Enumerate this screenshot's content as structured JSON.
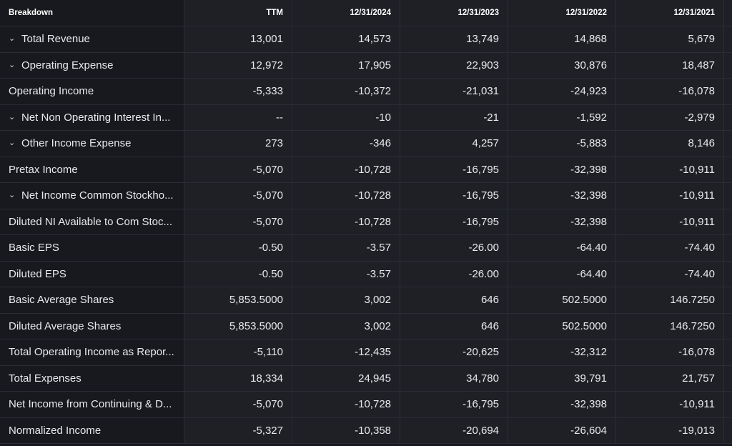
{
  "header": {
    "breakdown": "Breakdown",
    "columns": [
      "TTM",
      "12/31/2024",
      "12/31/2023",
      "12/31/2022",
      "12/31/2021"
    ]
  },
  "rows": [
    {
      "label": "Total Revenue",
      "expandable": true,
      "values": [
        "13,001",
        "14,573",
        "13,749",
        "14,868",
        "5,679"
      ]
    },
    {
      "label": "Operating Expense",
      "expandable": true,
      "values": [
        "12,972",
        "17,905",
        "22,903",
        "30,876",
        "18,487"
      ]
    },
    {
      "label": "Operating Income",
      "expandable": false,
      "values": [
        "-5,333",
        "-10,372",
        "-21,031",
        "-24,923",
        "-16,078"
      ]
    },
    {
      "label": "Net Non Operating Interest In...",
      "expandable": true,
      "values": [
        "--",
        "-10",
        "-21",
        "-1,592",
        "-2,979"
      ]
    },
    {
      "label": "Other Income Expense",
      "expandable": true,
      "values": [
        "273",
        "-346",
        "4,257",
        "-5,883",
        "8,146"
      ]
    },
    {
      "label": "Pretax Income",
      "expandable": false,
      "values": [
        "-5,070",
        "-10,728",
        "-16,795",
        "-32,398",
        "-10,911"
      ]
    },
    {
      "label": "Net Income Common Stockho...",
      "expandable": true,
      "values": [
        "-5,070",
        "-10,728",
        "-16,795",
        "-32,398",
        "-10,911"
      ]
    },
    {
      "label": "Diluted NI Available to Com Stoc...",
      "expandable": false,
      "values": [
        "-5,070",
        "-10,728",
        "-16,795",
        "-32,398",
        "-10,911"
      ]
    },
    {
      "label": "Basic EPS",
      "expandable": false,
      "values": [
        "-0.50",
        "-3.57",
        "-26.00",
        "-64.40",
        "-74.40"
      ]
    },
    {
      "label": "Diluted EPS",
      "expandable": false,
      "values": [
        "-0.50",
        "-3.57",
        "-26.00",
        "-64.40",
        "-74.40"
      ]
    },
    {
      "label": "Basic Average Shares",
      "expandable": false,
      "values": [
        "5,853.5000",
        "3,002",
        "646",
        "502.5000",
        "146.7250"
      ]
    },
    {
      "label": "Diluted Average Shares",
      "expandable": false,
      "values": [
        "5,853.5000",
        "3,002",
        "646",
        "502.5000",
        "146.7250"
      ]
    },
    {
      "label": "Total Operating Income as Repor...",
      "expandable": false,
      "values": [
        "-5,110",
        "-12,435",
        "-20,625",
        "-32,312",
        "-16,078"
      ]
    },
    {
      "label": "Total Expenses",
      "expandable": false,
      "values": [
        "18,334",
        "24,945",
        "34,780",
        "39,791",
        "21,757"
      ]
    },
    {
      "label": "Net Income from Continuing & D...",
      "expandable": false,
      "values": [
        "-5,070",
        "-10,728",
        "-16,795",
        "-32,398",
        "-10,911"
      ]
    },
    {
      "label": "Normalized Income",
      "expandable": false,
      "values": [
        "-5,327",
        "-10,358",
        "-20,694",
        "-26,604",
        "-19,013"
      ]
    }
  ],
  "icons": {
    "expand": "chevron-down-icon"
  },
  "colors": {
    "background": "#16181d",
    "label_column": "#17191e",
    "value_columns": "#1e2026",
    "grid_lines": "#2a2d34",
    "text": "#e8e9ec"
  }
}
